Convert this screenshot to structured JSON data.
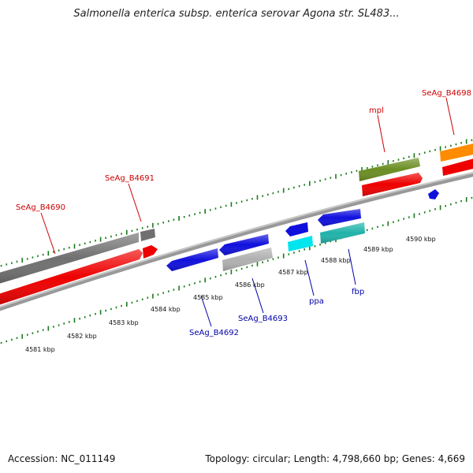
{
  "title": "Salmonella enterica subsp. enterica serovar Agona str. SL483...",
  "footer": {
    "accession": "Accession: NC_011149",
    "summary": "Topology: circular; Length: 4,798,660 bp; Genes: 4,669"
  },
  "colors": {
    "backbone": "#999999",
    "tick_green": "#1a7a1a",
    "forward_label": "#cc0000",
    "reverse_label": "#0000aa"
  },
  "ticks": [
    "4581 kbp",
    "4582 kbp",
    "4583 kbp",
    "4584 kbp",
    "4585 kbp",
    "4586 kbp",
    "4587 kbp",
    "4588 kbp",
    "4589 kbp",
    "4590 kbp"
  ],
  "forward_labels": [
    "SeAg_B4690",
    "SeAg_B4691",
    "mpl",
    "SeAg_B4698"
  ],
  "reverse_labels": [
    "SeAg_B4692",
    "SeAg_B4693",
    "ppa",
    "fbp"
  ],
  "features": [
    {
      "id": "f-gray-1",
      "color": "#707070",
      "strand": "forward",
      "track": "outer"
    },
    {
      "id": "f-gray-2",
      "color": "#707070",
      "strand": "forward",
      "track": "outer"
    },
    {
      "id": "f-red-1",
      "color": "#ee0000",
      "strand": "forward",
      "track": "inner"
    },
    {
      "id": "f-red-2",
      "color": "#ee0000",
      "strand": "forward",
      "track": "inner"
    },
    {
      "id": "f-olive",
      "color": "#6b8e23",
      "strand": "forward",
      "track": "outer"
    },
    {
      "id": "f-red-3",
      "color": "#ee0000",
      "strand": "forward",
      "track": "inner"
    },
    {
      "id": "f-orange",
      "color": "#ff8c00",
      "strand": "forward",
      "track": "outer"
    },
    {
      "id": "f-red-4",
      "color": "#ee0000",
      "strand": "forward",
      "track": "inner"
    },
    {
      "id": "r-blue-1",
      "color": "#1010dd",
      "strand": "reverse",
      "track": "inner"
    },
    {
      "id": "r-blue-2",
      "color": "#1010dd",
      "strand": "reverse",
      "track": "inner"
    },
    {
      "id": "r-silver",
      "color": "#b0b0b0",
      "strand": "reverse",
      "track": "outer"
    },
    {
      "id": "r-blue-3",
      "color": "#1010dd",
      "strand": "reverse",
      "track": "inner"
    },
    {
      "id": "r-cyan",
      "color": "#00e5ee",
      "strand": "reverse",
      "track": "outer"
    },
    {
      "id": "r-blue-4",
      "color": "#1010dd",
      "strand": "reverse",
      "track": "inner"
    },
    {
      "id": "r-teal",
      "color": "#20b2aa",
      "strand": "reverse",
      "track": "outer"
    },
    {
      "id": "r-blue-5",
      "color": "#1010dd",
      "strand": "reverse",
      "track": "inner"
    }
  ]
}
